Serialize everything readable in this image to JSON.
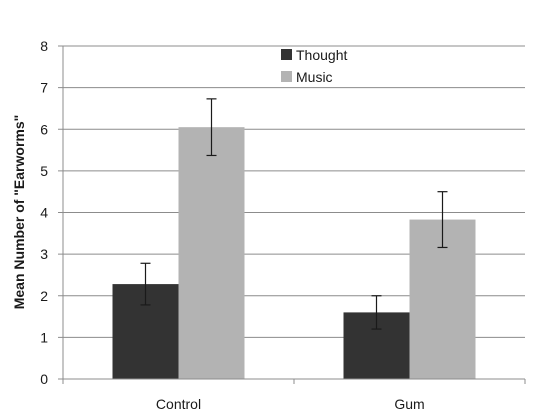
{
  "chart_data": {
    "type": "bar",
    "title": "",
    "xlabel": "",
    "ylabel": "Mean Number of \"Earworms\"",
    "categories": [
      "Control",
      "Gum"
    ],
    "series": [
      {
        "name": "Thought",
        "color": "#333333",
        "values": [
          2.28,
          1.6
        ],
        "error": [
          0.5,
          0.4
        ]
      },
      {
        "name": "Music",
        "color": "#b3b3b3",
        "values": [
          6.05,
          3.83
        ],
        "error": [
          0.68,
          0.67
        ]
      }
    ],
    "ylim": [
      0,
      8
    ],
    "yticks": [
      0,
      1,
      2,
      3,
      4,
      5,
      6,
      7,
      8
    ],
    "grid": true,
    "legend_position": "top-center"
  }
}
